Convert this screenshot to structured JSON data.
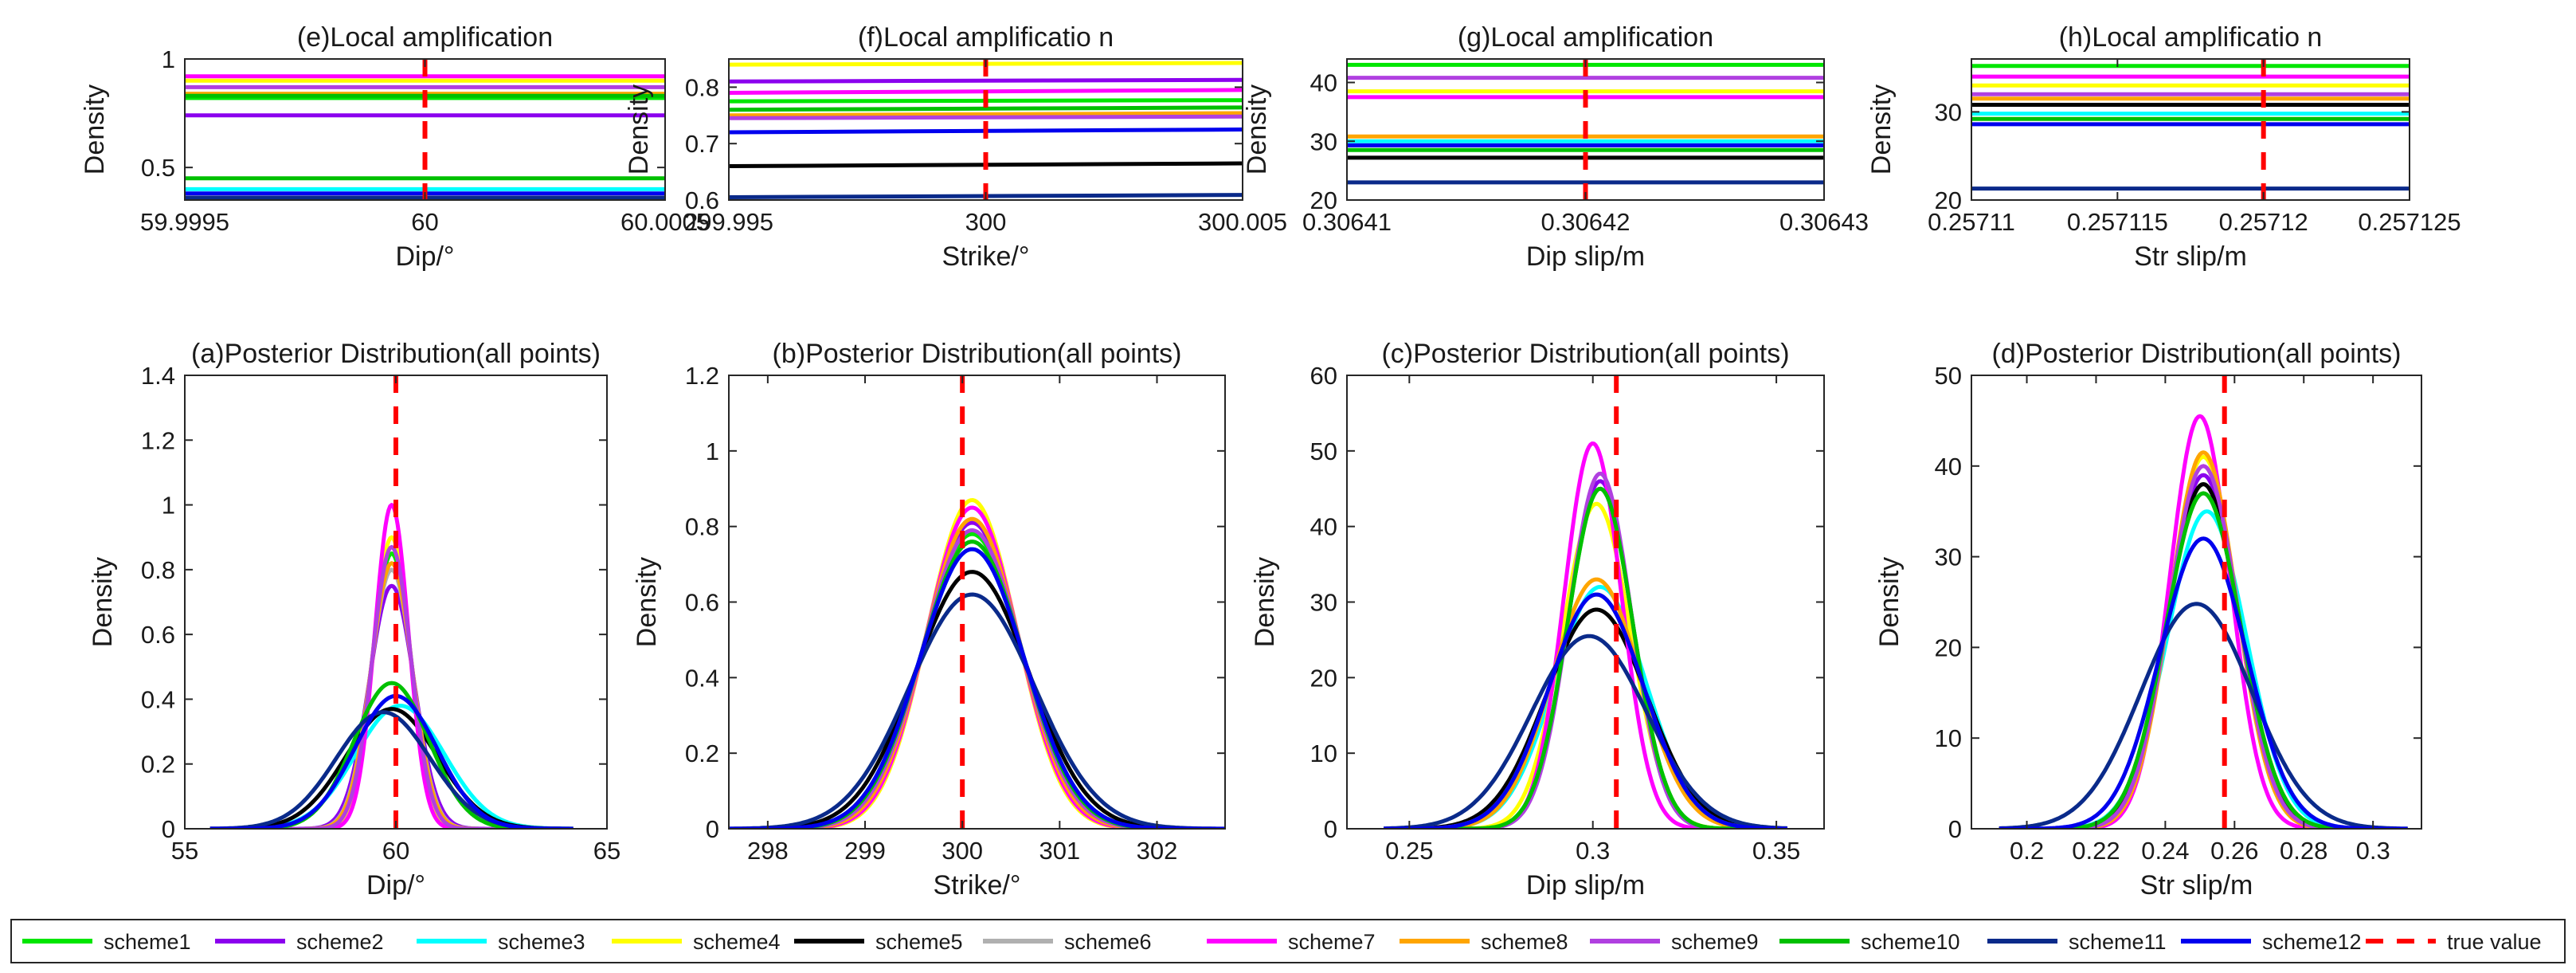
{
  "legend": {
    "entries": [
      {
        "label": "scheme1",
        "color": "#00e600",
        "style": "solid"
      },
      {
        "label": "scheme2",
        "color": "#8b00ee",
        "style": "solid"
      },
      {
        "label": "scheme3",
        "color": "#00ffff",
        "style": "solid"
      },
      {
        "label": "scheme4",
        "color": "#ffff00",
        "style": "solid"
      },
      {
        "label": "scheme5",
        "color": "#000000",
        "style": "solid"
      },
      {
        "label": "scheme6",
        "color": "#b0b0b0",
        "style": "solid"
      },
      {
        "label": "scheme7",
        "color": "#ff00ff",
        "style": "solid"
      },
      {
        "label": "scheme8",
        "color": "#ffa500",
        "style": "solid"
      },
      {
        "label": "scheme9",
        "color": "#b040e0",
        "style": "solid"
      },
      {
        "label": "scheme10",
        "color": "#00c000",
        "style": "solid"
      },
      {
        "label": "scheme11",
        "color": "#0a2a8a",
        "style": "solid"
      },
      {
        "label": "scheme12",
        "color": "#0000ee",
        "style": "solid"
      },
      {
        "label": "true value",
        "color": "#ff0000",
        "style": "dashed"
      }
    ]
  },
  "chart_data": [
    {
      "type": "line",
      "title": "(e)Local amplification",
      "xlabel": "Dip/°",
      "ylabel": "Density",
      "xlim": [
        59.9995,
        60.0005
      ],
      "ylim": [
        0.35,
        1.0
      ],
      "xticks": [
        59.9995,
        60,
        60.0005
      ],
      "xticklabels": [
        "59.9995",
        "60",
        "60.0005"
      ],
      "yticks": [
        0.5,
        1
      ],
      "yticklabels": [
        "0.5",
        "1"
      ],
      "true_value": 60,
      "series": [
        {
          "legend_index": 6,
          "y": 0.92
        },
        {
          "legend_index": 3,
          "y": 0.9
        },
        {
          "legend_index": 8,
          "y": 0.87
        },
        {
          "legend_index": 7,
          "y": 0.84
        },
        {
          "legend_index": 0,
          "y": 0.82
        },
        {
          "legend_index": 9,
          "y": 0.83
        },
        {
          "legend_index": 1,
          "y": 0.74
        },
        {
          "legend_index": 9,
          "y": 0.45
        },
        {
          "legend_index": 2,
          "y": 0.4
        },
        {
          "legend_index": 11,
          "y": 0.38
        },
        {
          "legend_index": 4,
          "y": 0.36
        },
        {
          "legend_index": 10,
          "y": 0.36
        }
      ]
    },
    {
      "type": "line",
      "title": "(f)Local amplificatio n",
      "xlabel": "Strike/°",
      "ylabel": "Density",
      "xlim": [
        299.995,
        300.005
      ],
      "ylim": [
        0.6,
        0.85
      ],
      "xticks": [
        299.995,
        300,
        300.005
      ],
      "xticklabels": [
        "299.995",
        "300",
        "300.005"
      ],
      "yticks": [
        0.6,
        0.7,
        0.8
      ],
      "yticklabels": [
        "0.6",
        "0.7",
        "0.8"
      ],
      "true_value": 300,
      "series": [
        {
          "legend_index": 3,
          "y": [
            0.84,
            0.843
          ]
        },
        {
          "legend_index": 1,
          "y": [
            0.81,
            0.813
          ]
        },
        {
          "legend_index": 6,
          "y": [
            0.79,
            0.795
          ]
        },
        {
          "legend_index": 0,
          "y": [
            0.775,
            0.777
          ]
        },
        {
          "legend_index": 9,
          "y": [
            0.76,
            0.764
          ]
        },
        {
          "legend_index": 7,
          "y": [
            0.75,
            0.754
          ]
        },
        {
          "legend_index": 8,
          "y": [
            0.745,
            0.748
          ]
        },
        {
          "legend_index": 11,
          "y": [
            0.72,
            0.725
          ]
        },
        {
          "legend_index": 4,
          "y": [
            0.66,
            0.665
          ]
        },
        {
          "legend_index": 10,
          "y": [
            0.605,
            0.609
          ]
        }
      ]
    },
    {
      "type": "line",
      "title": "(g)Local amplification",
      "xlabel": "Dip slip/m",
      "ylabel": "Density",
      "xlim": [
        0.30641,
        0.30643
      ],
      "ylim": [
        20,
        44
      ],
      "xticks": [
        0.30641,
        0.30642,
        0.30643
      ],
      "xticklabels": [
        "0.30641",
        "0.30642",
        "0.30643"
      ],
      "yticks": [
        20,
        30,
        40
      ],
      "yticklabels": [
        "20",
        "30",
        "40"
      ],
      "true_value": 0.30642,
      "series": [
        {
          "legend_index": 0,
          "y": 43.0
        },
        {
          "legend_index": 8,
          "y": 40.8
        },
        {
          "legend_index": 3,
          "y": 38.5
        },
        {
          "legend_index": 6,
          "y": 37.5
        },
        {
          "legend_index": 7,
          "y": 30.8
        },
        {
          "legend_index": 2,
          "y": 30.0
        },
        {
          "legend_index": 11,
          "y": 29.3
        },
        {
          "legend_index": 9,
          "y": 28.5
        },
        {
          "legend_index": 4,
          "y": 27.2
        },
        {
          "legend_index": 10,
          "y": 23.0
        }
      ]
    },
    {
      "type": "line",
      "title": "(h)Local amplificatio n",
      "xlabel": "Str slip/m",
      "ylabel": "Density",
      "xlim": [
        0.25711,
        0.257125
      ],
      "ylim": [
        20,
        36
      ],
      "xticks": [
        0.25711,
        0.257115,
        0.25712,
        0.257125
      ],
      "xticklabels": [
        "0.25711",
        "0.257115",
        "0.25712",
        "0.257125"
      ],
      "yticks": [
        20,
        30
      ],
      "yticklabels": [
        "20",
        "30"
      ],
      "true_value": 0.25712,
      "series": [
        {
          "legend_index": 0,
          "y": 35.2
        },
        {
          "legend_index": 6,
          "y": 34.0
        },
        {
          "legend_index": 3,
          "y": 33.0
        },
        {
          "legend_index": 8,
          "y": 32.0
        },
        {
          "legend_index": 7,
          "y": 31.5
        },
        {
          "legend_index": 4,
          "y": 30.8
        },
        {
          "legend_index": 2,
          "y": 29.8
        },
        {
          "legend_index": 9,
          "y": 29.2
        },
        {
          "legend_index": 11,
          "y": 28.6
        },
        {
          "legend_index": 10,
          "y": 21.3
        }
      ]
    },
    {
      "type": "line",
      "title": "(a)Posterior Distribution(all points)",
      "xlabel": "Dip/°",
      "ylabel": "Density",
      "xlim": [
        55,
        65
      ],
      "ylim": [
        0,
        1.4
      ],
      "xticks": [
        55,
        60,
        65
      ],
      "xticklabels": [
        "55",
        "60",
        "65"
      ],
      "yticks": [
        0,
        0.2,
        0.4,
        0.6,
        0.8,
        1,
        1.2,
        1.4
      ],
      "yticklabels": [
        "0",
        "0.2",
        "0.4",
        "0.6",
        "0.8",
        "1",
        "1.2",
        "1.4"
      ],
      "true_value": 60,
      "support": [
        55.6,
        64.2
      ],
      "series": [
        {
          "legend_index": 0,
          "mean": 59.9,
          "peak": 0.85
        },
        {
          "legend_index": 1,
          "mean": 59.9,
          "peak": 0.75
        },
        {
          "legend_index": 2,
          "mean": 60.1,
          "peak": 0.38
        },
        {
          "legend_index": 3,
          "mean": 59.9,
          "peak": 0.9
        },
        {
          "legend_index": 4,
          "mean": 59.9,
          "peak": 0.37
        },
        {
          "legend_index": 5,
          "mean": 59.9,
          "peak": 0.8
        },
        {
          "legend_index": 6,
          "mean": 59.9,
          "peak": 1.0
        },
        {
          "legend_index": 7,
          "mean": 59.9,
          "peak": 0.82
        },
        {
          "legend_index": 8,
          "mean": 59.9,
          "peak": 0.87
        },
        {
          "legend_index": 9,
          "mean": 59.9,
          "peak": 0.45
        },
        {
          "legend_index": 10,
          "mean": 59.7,
          "peak": 0.36
        },
        {
          "legend_index": 11,
          "mean": 60.0,
          "peak": 0.41
        }
      ]
    },
    {
      "type": "line",
      "title": "(b)Posterior Distribution(all points)",
      "xlabel": "Strike/°",
      "ylabel": "Density",
      "xlim": [
        297.6,
        302.7
      ],
      "ylim": [
        0,
        1.2
      ],
      "xticks": [
        298,
        299,
        300,
        301,
        302
      ],
      "xticklabels": [
        "298",
        "299",
        "300",
        "301",
        "302"
      ],
      "yticks": [
        0,
        0.2,
        0.4,
        0.6,
        0.8,
        1,
        1.2
      ],
      "yticklabels": [
        "0",
        "0.2",
        "0.4",
        "0.6",
        "0.8",
        "1",
        "1.2"
      ],
      "true_value": 300,
      "support": [
        297.6,
        302.7
      ],
      "series": [
        {
          "legend_index": 0,
          "mean": 300.1,
          "peak": 0.78
        },
        {
          "legend_index": 1,
          "mean": 300.1,
          "peak": 0.81
        },
        {
          "legend_index": 2,
          "mean": 300.1,
          "peak": 0.74
        },
        {
          "legend_index": 3,
          "mean": 300.1,
          "peak": 0.87
        },
        {
          "legend_index": 4,
          "mean": 300.1,
          "peak": 0.68
        },
        {
          "legend_index": 5,
          "mean": 300.1,
          "peak": 0.76
        },
        {
          "legend_index": 6,
          "mean": 300.1,
          "peak": 0.85
        },
        {
          "legend_index": 7,
          "mean": 300.1,
          "peak": 0.82
        },
        {
          "legend_index": 8,
          "mean": 300.1,
          "peak": 0.79
        },
        {
          "legend_index": 9,
          "mean": 300.1,
          "peak": 0.76
        },
        {
          "legend_index": 10,
          "mean": 300.1,
          "peak": 0.62
        },
        {
          "legend_index": 11,
          "mean": 300.1,
          "peak": 0.74
        }
      ]
    },
    {
      "type": "line",
      "title": "(c)Posterior Distribution(all points)",
      "xlabel": "Dip slip/m",
      "ylabel": "Density",
      "xlim": [
        0.233,
        0.363
      ],
      "ylim": [
        0,
        60
      ],
      "xticks": [
        0.25,
        0.3,
        0.35
      ],
      "xticklabels": [
        "0.25",
        "0.3",
        "0.35"
      ],
      "yticks": [
        0,
        10,
        20,
        30,
        40,
        50,
        60
      ],
      "yticklabels": [
        "0",
        "10",
        "20",
        "30",
        "40",
        "50",
        "60"
      ],
      "true_value": 0.3064,
      "support": [
        0.243,
        0.353
      ],
      "series": [
        {
          "legend_index": 0,
          "mean": 0.302,
          "peak": 45
        },
        {
          "legend_index": 1,
          "mean": 0.302,
          "peak": 46
        },
        {
          "legend_index": 2,
          "mean": 0.302,
          "peak": 32
        },
        {
          "legend_index": 3,
          "mean": 0.301,
          "peak": 43
        },
        {
          "legend_index": 4,
          "mean": 0.301,
          "peak": 29
        },
        {
          "legend_index": 5,
          "mean": 0.301,
          "peak": 31
        },
        {
          "legend_index": 6,
          "mean": 0.3,
          "peak": 51
        },
        {
          "legend_index": 7,
          "mean": 0.301,
          "peak": 33
        },
        {
          "legend_index": 8,
          "mean": 0.302,
          "peak": 47
        },
        {
          "legend_index": 9,
          "mean": 0.302,
          "peak": 45
        },
        {
          "legend_index": 10,
          "mean": 0.299,
          "peak": 25.5
        },
        {
          "legend_index": 11,
          "mean": 0.301,
          "peak": 31
        }
      ]
    },
    {
      "type": "line",
      "title": "(d)Posterior Distribution(all points)",
      "xlabel": "Str slip/m",
      "ylabel": "Density",
      "xlim": [
        0.184,
        0.314
      ],
      "ylim": [
        0,
        50
      ],
      "xticks": [
        0.2,
        0.22,
        0.24,
        0.26,
        0.28,
        0.3
      ],
      "xticklabels": [
        "0.2",
        "0.22",
        "0.24",
        "0.26",
        "0.28",
        "0.3"
      ],
      "yticks": [
        0,
        10,
        20,
        30,
        40,
        50
      ],
      "yticklabels": [
        "0",
        "10",
        "20",
        "30",
        "40",
        "50"
      ],
      "true_value": 0.2571,
      "support": [
        0.192,
        0.31
      ],
      "series": [
        {
          "legend_index": 0,
          "mean": 0.251,
          "peak": 38
        },
        {
          "legend_index": 1,
          "mean": 0.251,
          "peak": 39
        },
        {
          "legend_index": 2,
          "mean": 0.252,
          "peak": 35
        },
        {
          "legend_index": 3,
          "mean": 0.251,
          "peak": 41
        },
        {
          "legend_index": 4,
          "mean": 0.251,
          "peak": 38
        },
        {
          "legend_index": 5,
          "mean": 0.251,
          "peak": 37
        },
        {
          "legend_index": 6,
          "mean": 0.25,
          "peak": 45.5
        },
        {
          "legend_index": 7,
          "mean": 0.251,
          "peak": 41.5
        },
        {
          "legend_index": 8,
          "mean": 0.251,
          "peak": 40
        },
        {
          "legend_index": 9,
          "mean": 0.251,
          "peak": 37
        },
        {
          "legend_index": 10,
          "mean": 0.249,
          "peak": 24.8
        },
        {
          "legend_index": 11,
          "mean": 0.251,
          "peak": 32
        }
      ]
    }
  ]
}
